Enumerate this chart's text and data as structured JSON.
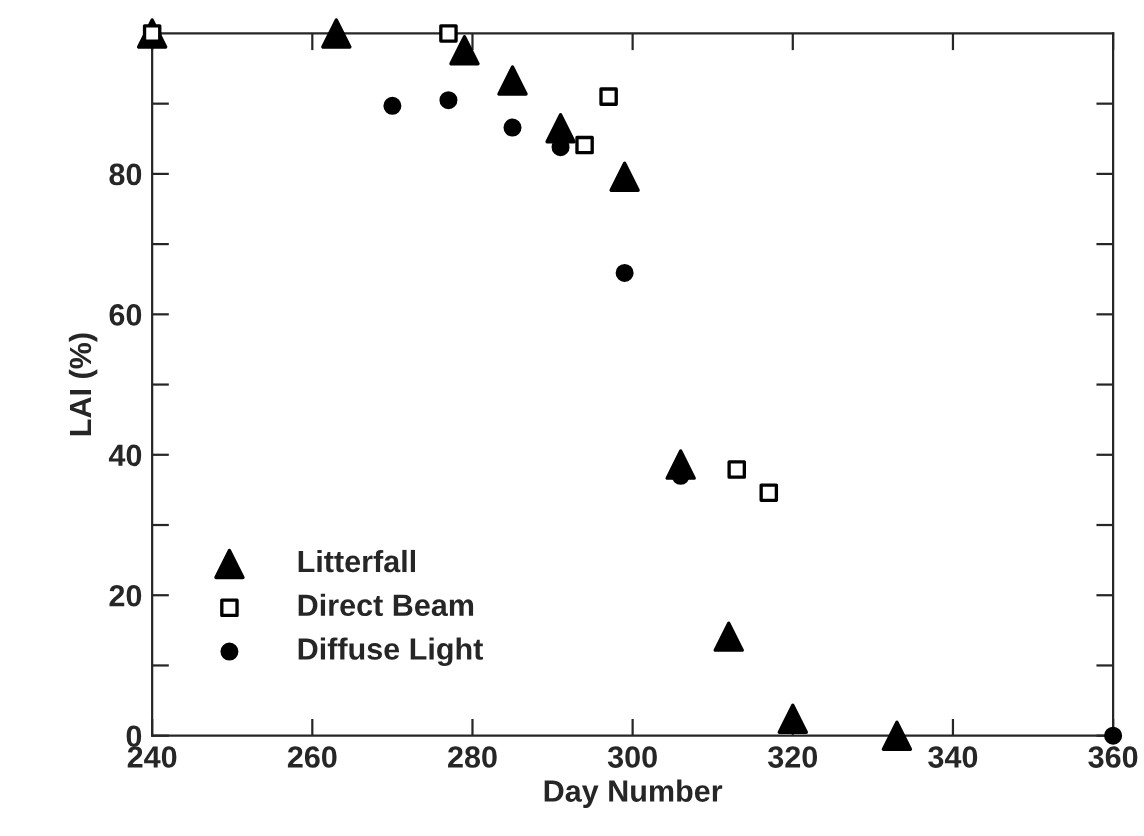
{
  "chart_data": {
    "type": "scatter",
    "xlabel": "Day Number",
    "ylabel": "LAI (%)",
    "xlim": [
      240,
      360
    ],
    "xticks": [
      240,
      260,
      280,
      300,
      320,
      340,
      360
    ],
    "ylim": [
      0,
      100
    ],
    "yticks": [
      0,
      {
        "value": 10,
        "label": null
      },
      20,
      {
        "value": 30,
        "label": null
      },
      40,
      {
        "value": 50,
        "label": null
      },
      60,
      {
        "value": 70,
        "label": null
      },
      80,
      {
        "value": 90,
        "label": null
      }
    ],
    "grid": false,
    "legend": "bottom left",
    "series": [
      {
        "name": "Litterfall",
        "color": "#000000",
        "marker": "triangle",
        "x": [
          240,
          263,
          279,
          285,
          291,
          299,
          306,
          312,
          320,
          333
        ],
        "values": [
          100,
          100,
          97.6,
          93.3,
          86.5,
          79.6,
          38.6,
          14.1,
          2.4,
          0
        ]
      },
      {
        "name": "Direct Beam",
        "color": "#000000",
        "marker": "square",
        "x": [
          240,
          277,
          294,
          297,
          313,
          317
        ],
        "values": [
          100,
          100,
          84.1,
          91,
          37.9,
          34.6
        ]
      },
      {
        "name": "Diffuse Light",
        "color": "#000000",
        "marker": "circle",
        "x": [
          270,
          277,
          285,
          291,
          299,
          306,
          360
        ],
        "values": [
          89.7,
          90.5,
          86.6,
          83.8,
          65.9,
          37,
          0
        ]
      }
    ]
  }
}
